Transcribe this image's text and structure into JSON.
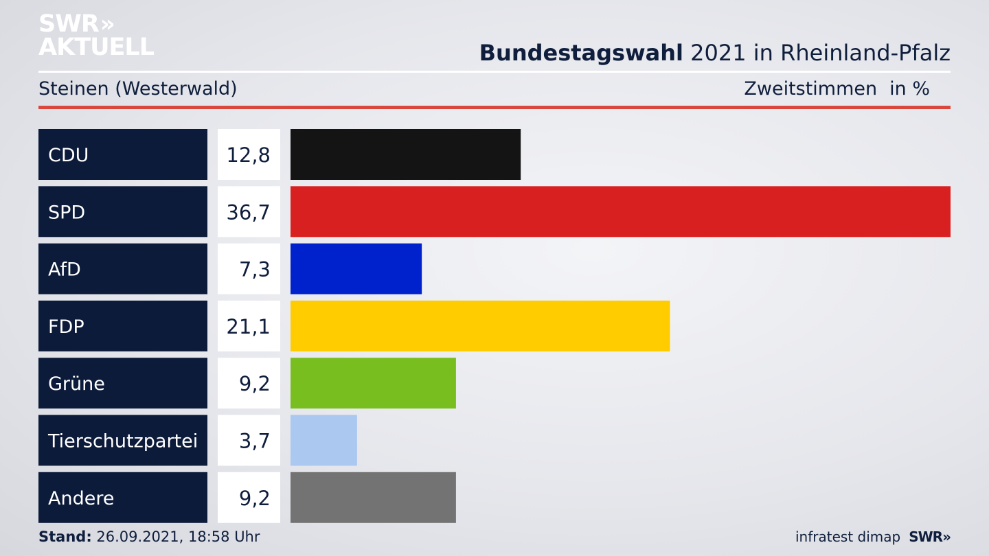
{
  "brand": {
    "logo_line1": "SWR",
    "logo_chevrons": "»",
    "logo_line2": "AKTUELL",
    "footer_logo": "SWR",
    "footer_chevrons": "»"
  },
  "header": {
    "title_bold": "Bundestagswahl",
    "title_rest": "2021 in Rheinland-Pfalz",
    "region": "Steinen (Westerwald)",
    "measure": "Zweitstimmen",
    "unit": "in %"
  },
  "footer": {
    "stand_label": "Stand:",
    "stand_value": "26.09.2021, 18:58 Uhr",
    "source": "infratest dimap"
  },
  "colors": {
    "label_bg": "#0d1b3a",
    "value_bg": "#ffffff",
    "accent_red": "#d9473d"
  },
  "chart_data": {
    "type": "bar",
    "orientation": "horizontal",
    "categories": [
      "CDU",
      "SPD",
      "AfD",
      "FDP",
      "Grüne",
      "Tierschutzpartei",
      "Andere"
    ],
    "values": [
      12.8,
      36.7,
      7.3,
      21.1,
      9.2,
      3.7,
      9.2
    ],
    "value_labels": [
      "12,8",
      "36,7",
      "7,3",
      "21,1",
      "9,2",
      "3,7",
      "9,2"
    ],
    "colors": [
      "#141414",
      "#d92020",
      "#0022cc",
      "#ffcc00",
      "#78be1e",
      "#aac8f0",
      "#737373"
    ],
    "xlim": [
      0,
      36.7
    ],
    "grid": false,
    "legend": "none"
  }
}
